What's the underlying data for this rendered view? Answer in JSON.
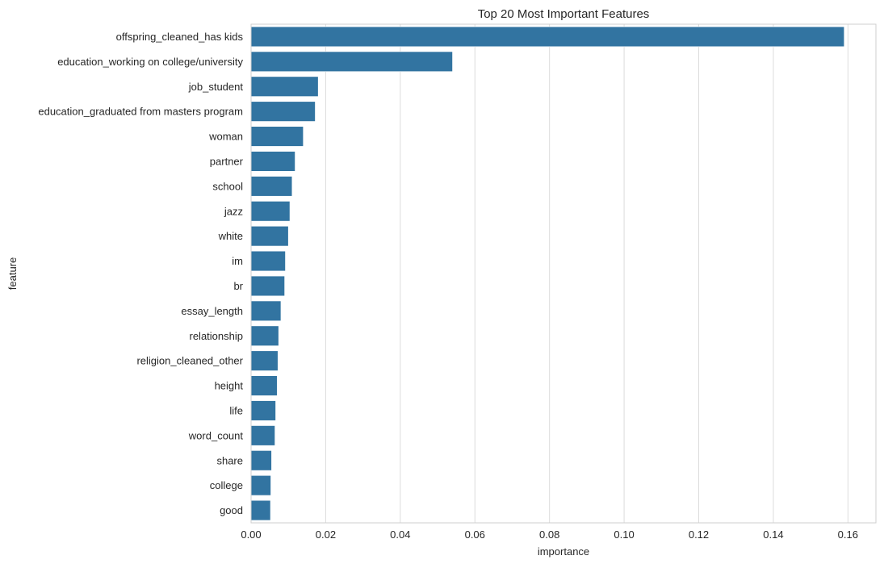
{
  "colors": {
    "bar": "#3274a1",
    "grid": "#dcdcdc",
    "frame": "#cfcfcf",
    "text": "#262626"
  },
  "chart_data": {
    "type": "bar",
    "orientation": "horizontal",
    "title": "Top 20 Most Important Features",
    "xlabel": "importance",
    "ylabel": "feature",
    "xlim": [
      0,
      0.1675
    ],
    "xticks": [
      "0.00",
      "0.02",
      "0.04",
      "0.06",
      "0.08",
      "0.10",
      "0.12",
      "0.14",
      "0.16"
    ],
    "grid": "vertical",
    "categories": [
      "offspring_cleaned_has kids",
      "education_working on college/university",
      "job_student",
      "education_graduated from masters program",
      "woman",
      "partner",
      "school",
      "jazz",
      "white",
      "im",
      "br",
      "essay_length",
      "relationship",
      "religion_cleaned_other",
      "height",
      "life",
      "word_count",
      "share",
      "college",
      "good"
    ],
    "values": [
      0.159,
      0.054,
      0.018,
      0.0172,
      0.014,
      0.0118,
      0.011,
      0.0104,
      0.01,
      0.0092,
      0.009,
      0.008,
      0.0074,
      0.0072,
      0.007,
      0.0066,
      0.0064,
      0.0055,
      0.0053,
      0.0052
    ]
  }
}
